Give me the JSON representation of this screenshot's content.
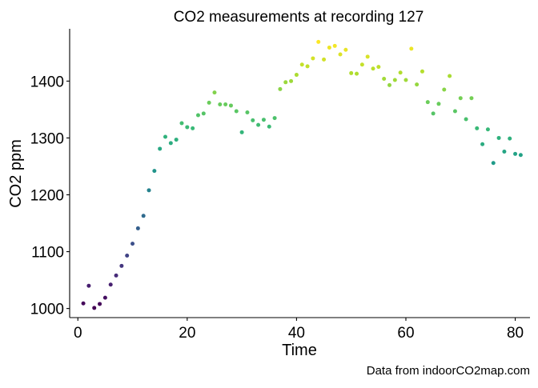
{
  "chart_data": {
    "type": "scatter",
    "title": "CO2 measurements at recording 127",
    "xlabel": "Time",
    "ylabel": "CO2 ppm",
    "caption": "Data from indoorCO2map.com",
    "xlim": [
      -1.5,
      82.7
    ],
    "ylim": [
      984,
      1492
    ],
    "x_ticks": [
      0,
      20,
      40,
      60,
      80
    ],
    "y_ticks": [
      1000,
      1100,
      1200,
      1300,
      1400
    ],
    "x_tick_labels": [
      "0",
      "20",
      "40",
      "60",
      "80"
    ],
    "y_tick_labels": [
      "1000",
      "1100",
      "1200",
      "1300",
      "1400"
    ],
    "grid": false,
    "legend": "none",
    "colormap": "viridis",
    "color_range": [
      1000,
      1470
    ],
    "x": [
      1,
      2,
      3,
      4,
      5,
      6,
      7,
      8,
      9,
      10,
      11,
      12,
      13,
      14,
      15,
      16,
      17,
      18,
      19,
      20,
      21,
      22,
      23,
      24,
      25,
      26,
      27,
      28,
      29,
      30,
      31,
      32,
      33,
      34,
      35,
      36,
      37,
      38,
      39,
      40,
      41,
      42,
      43,
      44,
      45,
      46,
      47,
      48,
      49,
      50,
      51,
      52,
      53,
      54,
      55,
      56,
      57,
      58,
      59,
      60,
      61,
      62,
      63,
      64,
      65,
      66,
      67,
      68,
      69,
      70,
      71,
      72,
      73,
      74,
      75,
      76,
      77,
      78,
      79,
      80,
      81
    ],
    "y": [
      1009,
      1040,
      1001,
      1008,
      1019,
      1042,
      1058,
      1075,
      1093,
      1114,
      1141,
      1163,
      1208,
      1242,
      1281,
      1302,
      1291,
      1297,
      1326,
      1319,
      1317,
      1340,
      1343,
      1362,
      1380,
      1359,
      1359,
      1357,
      1347,
      1310,
      1345,
      1331,
      1323,
      1332,
      1320,
      1335,
      1386,
      1398,
      1400,
      1411,
      1429,
      1426,
      1440,
      1469,
      1438,
      1459,
      1462,
      1447,
      1455,
      1414,
      1413,
      1429,
      1443,
      1422,
      1425,
      1404,
      1393,
      1402,
      1415,
      1402,
      1457,
      1394,
      1417,
      1363,
      1343,
      1360,
      1385,
      1409,
      1347,
      1370,
      1333,
      1370,
      1317,
      1289,
      1315,
      1256,
      1300,
      1276,
      1299,
      1272,
      1270
    ]
  }
}
